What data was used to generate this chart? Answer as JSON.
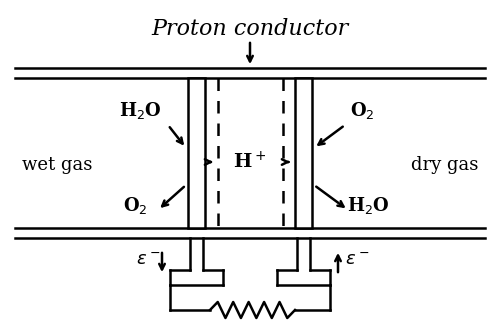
{
  "bg_color": "#ffffff",
  "line_color": "#000000",
  "title": "Proton conductor",
  "title_fontsize": 16,
  "wet_gas_label": "wet gas",
  "dry_gas_label": "dry gas",
  "label_fontsize": 13,
  "h2o_left": "H$_2$O",
  "o2_left": "O$_2$",
  "h_plus": "H$^+$",
  "o2_right": "O$_2$",
  "h2o_right": "H$_2$O",
  "e_left": "$\\varepsilon^-$",
  "e_right": "$\\varepsilon^-$"
}
